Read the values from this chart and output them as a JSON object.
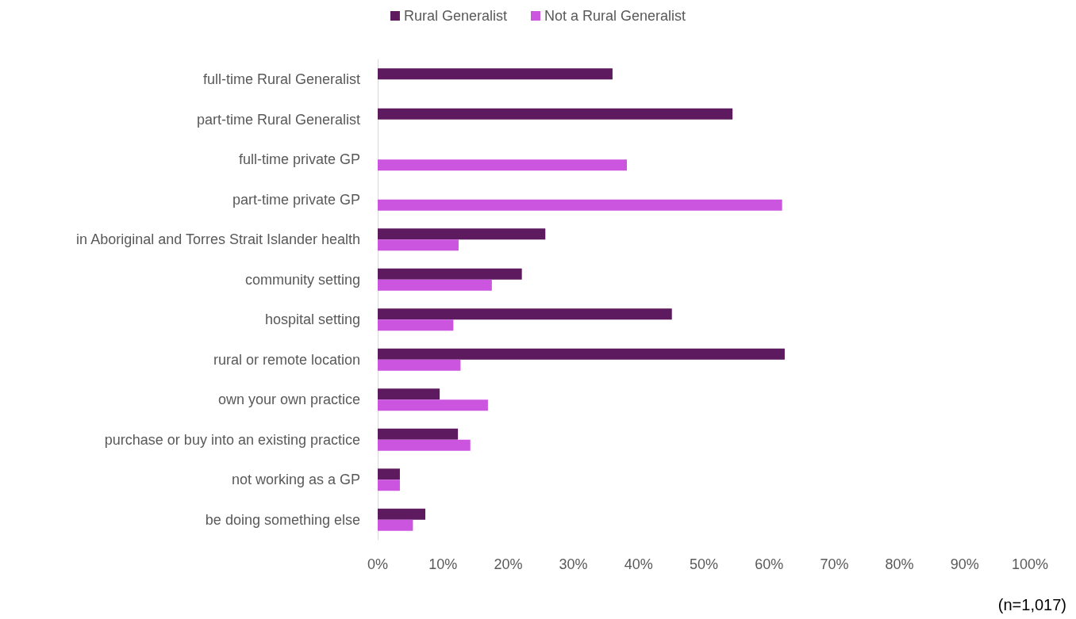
{
  "chart_data": {
    "type": "bar",
    "orientation": "horizontal",
    "legend": "top",
    "grid": false,
    "categories": [
      "full-time Rural Generalist",
      "part-time Rural Generalist",
      "full-time private GP",
      "part-time private GP",
      "in Aboriginal and Torres Strait Islander health",
      "community setting",
      "hospital setting",
      "rural or remote location",
      "own your own practice",
      "purchase or buy into an existing practice",
      "not working as a GP",
      "be doing something else"
    ],
    "series": [
      {
        "name": "Rural Generalist",
        "color": "#5e1a5f",
        "values": [
          36.0,
          54.4,
          null,
          null,
          25.7,
          22.1,
          45.1,
          62.4,
          9.5,
          12.3,
          3.4,
          7.3
        ]
      },
      {
        "name": "Not a Rural Generalist",
        "color": "#cc55e0",
        "values": [
          null,
          null,
          38.2,
          62.0,
          12.4,
          17.5,
          11.6,
          12.7,
          16.9,
          14.2,
          3.4,
          5.4
        ]
      }
    ],
    "xlim": [
      0,
      100
    ],
    "xticks": [
      {
        "value": 0,
        "label": "0%"
      },
      {
        "value": 10,
        "label": "10%"
      },
      {
        "value": 20,
        "label": "20%"
      },
      {
        "value": 30,
        "label": "30%"
      },
      {
        "value": 40,
        "label": "40%"
      },
      {
        "value": 50,
        "label": "50%"
      },
      {
        "value": 60,
        "label": "60%"
      },
      {
        "value": 70,
        "label": "70%"
      },
      {
        "value": 80,
        "label": "80%"
      },
      {
        "value": 90,
        "label": "90%"
      },
      {
        "value": 100,
        "label": "100%"
      }
    ],
    "annotations": [
      "(n=1,017)"
    ]
  }
}
